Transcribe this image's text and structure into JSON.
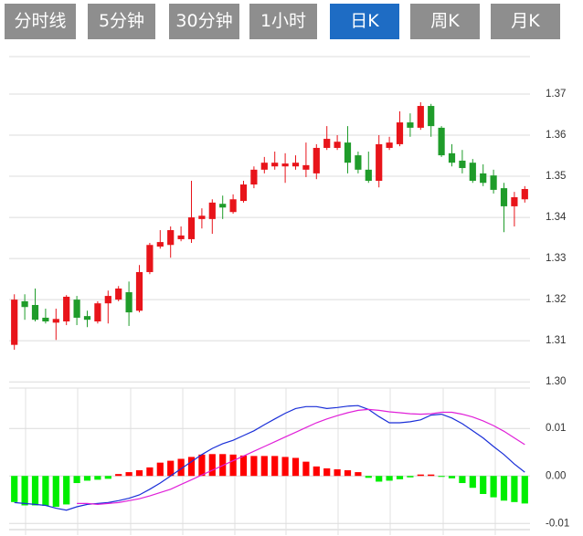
{
  "tabs": [
    {
      "label": "分时线"
    },
    {
      "label": "5分钟"
    },
    {
      "label": "30分钟"
    },
    {
      "label": "1小时"
    },
    {
      "label": "日K",
      "active": true
    },
    {
      "label": "周K"
    },
    {
      "label": "月K"
    }
  ],
  "chart_data": [
    {
      "type": "candlestick",
      "up_color": "#e8141a",
      "down_color": "#1f9c2a",
      "open": [
        1.309,
        1.3196,
        1.3187,
        1.3156,
        1.3144,
        1.3147,
        1.32,
        1.316,
        1.3147,
        1.3191,
        1.32,
        1.3218,
        1.3173,
        1.3267,
        1.3329,
        1.3333,
        1.3347,
        1.3347,
        1.3396,
        1.3396,
        1.3433,
        1.3413,
        1.344,
        1.348,
        1.3516,
        1.3524,
        1.3524,
        1.3524,
        1.3516,
        1.3507,
        1.3569,
        1.3569,
        1.3582,
        1.3551,
        1.3516,
        1.3489,
        1.3569,
        1.3578,
        1.3631,
        1.3618,
        1.3671,
        1.3618,
        1.3556,
        1.3538,
        1.3533,
        1.3507,
        1.3502,
        1.3471,
        1.3427,
        1.3444
      ],
      "high": [
        1.3213,
        1.3213,
        1.3227,
        1.3178,
        1.3178,
        1.3211,
        1.3209,
        1.3173,
        1.3196,
        1.3222,
        1.3233,
        1.3244,
        1.3284,
        1.3338,
        1.3369,
        1.3378,
        1.3378,
        1.3489,
        1.3422,
        1.3444,
        1.3453,
        1.3456,
        1.3489,
        1.3524,
        1.3547,
        1.356,
        1.3556,
        1.3551,
        1.3582,
        1.3578,
        1.3622,
        1.36,
        1.3622,
        1.356,
        1.356,
        1.36,
        1.3596,
        1.3658,
        1.3653,
        1.368,
        1.3676,
        1.3622,
        1.3578,
        1.3564,
        1.3542,
        1.3529,
        1.3516,
        1.3484,
        1.3462,
        1.3476
      ],
      "low": [
        1.3078,
        1.3151,
        1.3147,
        1.3142,
        1.3102,
        1.3138,
        1.3138,
        1.3133,
        1.3142,
        1.3142,
        1.3196,
        1.3136,
        1.3169,
        1.3262,
        1.3324,
        1.3302,
        1.3342,
        1.3338,
        1.3373,
        1.336,
        1.3396,
        1.3409,
        1.3436,
        1.3471,
        1.3507,
        1.3516,
        1.3484,
        1.3516,
        1.3498,
        1.3493,
        1.3564,
        1.3564,
        1.3507,
        1.3507,
        1.3484,
        1.3473,
        1.3564,
        1.3573,
        1.3596,
        1.3613,
        1.3596,
        1.3547,
        1.3524,
        1.3507,
        1.3484,
        1.3476,
        1.3458,
        1.3364,
        1.3378,
        1.3436
      ],
      "close": [
        1.32,
        1.3182,
        1.3151,
        1.3147,
        1.3153,
        1.3207,
        1.3156,
        1.3151,
        1.3191,
        1.3209,
        1.3227,
        1.3169,
        1.3267,
        1.3333,
        1.334,
        1.3369,
        1.3356,
        1.34,
        1.3404,
        1.3436,
        1.3424,
        1.3444,
        1.348,
        1.3516,
        1.3533,
        1.3533,
        1.3531,
        1.3533,
        1.3527,
        1.3569,
        1.3591,
        1.3584,
        1.3533,
        1.3516,
        1.3489,
        1.3578,
        1.3582,
        1.3631,
        1.3618,
        1.3671,
        1.3622,
        1.3551,
        1.3533,
        1.352,
        1.3489,
        1.3484,
        1.3467,
        1.3427,
        1.3449,
        1.3469
      ],
      "ylim": [
        1.2996,
        1.3791
      ],
      "yticks": [
        {
          "value": 1.3,
          "label": "1.30"
        },
        1.31,
        1.32,
        1.33,
        1.34,
        1.35,
        1.36,
        1.37
      ],
      "grid": true
    },
    {
      "type": "macd",
      "series": [
        {
          "type": "bar",
          "up_color": "#ff0000",
          "down_color": "#00ee00",
          "values": [
            -0.0055,
            -0.0062,
            -0.0062,
            -0.0063,
            -0.0065,
            -0.006,
            -0.0015,
            -0.001,
            -0.0008,
            -0.0006,
            0.0004,
            0.0008,
            0.0012,
            0.0018,
            0.0028,
            0.0032,
            0.0036,
            0.004,
            0.0045,
            0.0046,
            0.0046,
            0.0045,
            0.0043,
            0.0042,
            0.0042,
            0.0042,
            0.004,
            0.0038,
            0.003,
            0.002,
            0.0016,
            0.0014,
            0.0012,
            0.0008,
            -0.0004,
            -0.0012,
            -0.001,
            -0.0007,
            -0.0003,
            0.0003,
            0.0003,
            -0.0002,
            -0.0005,
            -0.0015,
            -0.0025,
            -0.0038,
            -0.0045,
            -0.0052,
            -0.0055,
            -0.0058
          ]
        },
        {
          "type": "line",
          "color": "#1a2fd8",
          "values": [
            -0.0056,
            -0.0058,
            -0.006,
            -0.0062,
            -0.0068,
            -0.0072,
            -0.0065,
            -0.006,
            -0.0058,
            -0.0056,
            -0.0052,
            -0.0047,
            -0.004,
            -0.0028,
            -0.0015,
            0.0,
            0.0015,
            0.003,
            0.0045,
            0.0058,
            0.0068,
            0.0075,
            0.0085,
            0.0095,
            0.0108,
            0.012,
            0.0132,
            0.0142,
            0.0146,
            0.0146,
            0.0142,
            0.0144,
            0.0147,
            0.0148,
            0.014,
            0.0125,
            0.0112,
            0.0112,
            0.0114,
            0.0118,
            0.0128,
            0.013,
            0.0122,
            0.011,
            0.0095,
            0.008,
            0.0062,
            0.0045,
            0.0025,
            0.0008
          ]
        },
        {
          "type": "line",
          "color": "#e020d8",
          "values": [
            null,
            null,
            null,
            null,
            null,
            null,
            -0.0058,
            -0.0058,
            -0.006,
            -0.0058,
            -0.0056,
            -0.0052,
            -0.0048,
            -0.0042,
            -0.0035,
            -0.0028,
            -0.0018,
            -0.0008,
            0.0002,
            0.0012,
            0.0022,
            0.0032,
            0.0042,
            0.0052,
            0.0062,
            0.0072,
            0.0082,
            0.0092,
            0.0102,
            0.0112,
            0.012,
            0.0127,
            0.0133,
            0.0138,
            0.014,
            0.0138,
            0.0135,
            0.0133,
            0.0131,
            0.013,
            0.0131,
            0.0134,
            0.0134,
            0.013,
            0.0124,
            0.0116,
            0.0106,
            0.0094,
            0.008,
            0.0066
          ]
        }
      ],
      "ylim": [
        -0.0113,
        0.0185
      ],
      "yticks": [
        -0.01,
        {
          "value": 0,
          "label": "0.00"
        },
        0.01
      ],
      "grid": true
    }
  ]
}
